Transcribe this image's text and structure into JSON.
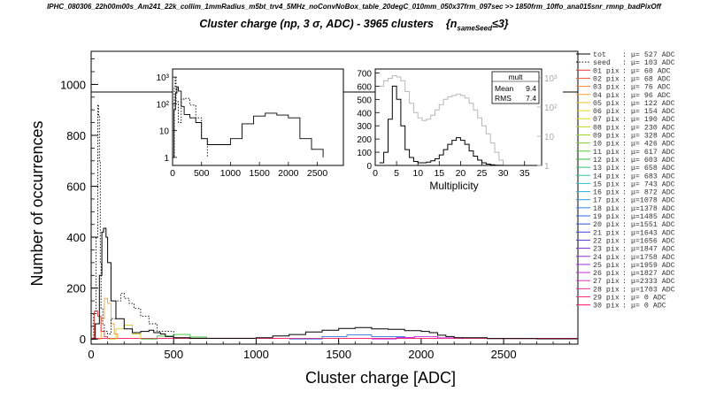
{
  "header": {
    "filename": "IPHC_080306_22h00m00s_Am241_22k_collim_1mmRadius_m5bt_trv4_5MHz_noConvNoBox_table_20degC_010mm_050x37frm_097sec >> 1850frm_10ffo_ana015snr_rmnp_badPixOff",
    "title": "Cluster charge (np, 3 σ, ADC) - 3965 clusters",
    "selection": "{n",
    "selection_sub": "sameSeed",
    "selection_tail": "≤3}"
  },
  "chart_data": [
    {
      "id": "main",
      "type": "line",
      "xlabel": "Cluster charge  [ADC]",
      "ylabel": "Number of occurrences",
      "xlim": [
        0,
        2950
      ],
      "ylim": [
        -20,
        1130
      ],
      "xticks": [
        0,
        500,
        1000,
        1500,
        2000,
        2500
      ],
      "yticks": [
        0,
        200,
        400,
        600,
        800,
        1000
      ],
      "series": [
        {
          "name": "tot",
          "style": "solid",
          "color": "#000000",
          "x": [
            0,
            25,
            50,
            65,
            75,
            90,
            100,
            120,
            150,
            200,
            250,
            300,
            350,
            380,
            420,
            450,
            500,
            600,
            800,
            1000,
            1100,
            1200,
            1300,
            1400,
            1500,
            1600,
            1700,
            1800,
            1900,
            2000,
            2050,
            2100,
            2150,
            2200,
            2400,
            2700,
            2950
          ],
          "y": [
            0,
            60,
            250,
            420,
            435,
            400,
            300,
            150,
            80,
            40,
            25,
            30,
            35,
            25,
            20,
            10,
            5,
            3,
            3,
            5,
            12,
            18,
            28,
            35,
            42,
            45,
            40,
            38,
            33,
            30,
            25,
            15,
            10,
            5,
            2,
            1,
            0
          ]
        },
        {
          "name": "seed",
          "style": "dotted",
          "color": "#000000",
          "x": [
            0,
            15,
            30,
            40,
            45,
            50,
            55,
            60,
            70,
            80,
            100,
            120,
            150,
            180,
            200,
            230,
            260,
            300,
            350,
            400,
            500,
            600
          ],
          "y": [
            0,
            100,
            400,
            920,
            880,
            700,
            300,
            120,
            60,
            30,
            20,
            80,
            150,
            180,
            160,
            140,
            120,
            90,
            60,
            30,
            5,
            0
          ]
        },
        {
          "name": "01 pix",
          "style": "solid",
          "color": "#e8393a",
          "x": [
            0,
            20,
            40,
            60,
            80,
            100
          ],
          "y": [
            0,
            110,
            90,
            30,
            10,
            0
          ]
        },
        {
          "name": "04 pix",
          "style": "solid",
          "color": "#f0a030",
          "x": [
            40,
            60,
            80,
            100,
            120,
            140,
            160
          ],
          "y": [
            0,
            80,
            160,
            140,
            60,
            20,
            0
          ]
        },
        {
          "name": "08 pix",
          "style": "solid",
          "color": "#d0d020",
          "x": [
            100,
            150,
            200,
            250,
            300
          ],
          "y": [
            0,
            40,
            55,
            20,
            0
          ]
        },
        {
          "name": "12 pix",
          "style": "solid",
          "color": "#30c030",
          "x": [
            300,
            400,
            500,
            600,
            700
          ],
          "y": [
            0,
            12,
            18,
            8,
            0
          ]
        },
        {
          "name": "20 pix",
          "style": "solid",
          "color": "#3070e0",
          "x": [
            1200,
            1400,
            1550,
            1700,
            1900
          ],
          "y": [
            0,
            10,
            16,
            10,
            0
          ]
        },
        {
          "name": "25 pix",
          "style": "solid",
          "color": "#c030e0",
          "x": [
            1700,
            1850,
            1960,
            2100,
            2250
          ],
          "y": [
            0,
            6,
            10,
            5,
            0
          ]
        },
        {
          "name": "30 pix",
          "style": "solid",
          "color": "#ff1060",
          "x": [
            0,
            2950
          ],
          "y": [
            3,
            3
          ]
        }
      ]
    },
    {
      "id": "inset-charge-log",
      "type": "line",
      "xlim": [
        0,
        2950
      ],
      "ylim": [
        0.5,
        2000
      ],
      "yscale": "log",
      "xticks": [
        0,
        500,
        1000,
        1500,
        2000,
        2500
      ],
      "yticks": [
        1,
        10,
        100,
        1000
      ],
      "ytick_labels": [
        "1",
        "10",
        "10²",
        "10³"
      ],
      "series": [
        {
          "name": "tot",
          "style": "solid",
          "color": "#000000",
          "x": [
            0,
            25,
            50,
            75,
            100,
            150,
            200,
            300,
            400,
            500,
            600,
            800,
            1000,
            1200,
            1400,
            1600,
            1800,
            2000,
            2200,
            2400,
            2600
          ],
          "y": [
            1,
            60,
            250,
            430,
            300,
            80,
            40,
            30,
            20,
            5,
            3,
            3,
            5,
            18,
            35,
            45,
            38,
            30,
            5,
            2,
            1
          ]
        },
        {
          "name": "seed",
          "style": "dotted",
          "color": "#000000",
          "x": [
            0,
            30,
            45,
            60,
            100,
            150,
            200,
            300,
            400,
            500,
            600
          ],
          "y": [
            1,
            400,
            920,
            120,
            20,
            150,
            160,
            90,
            30,
            5,
            1
          ]
        }
      ]
    },
    {
      "id": "inset-multiplicity",
      "type": "line",
      "xlabel": "Multiplicity",
      "xlim": [
        0,
        39
      ],
      "ylim": [
        0,
        730
      ],
      "xticks": [
        0,
        5,
        10,
        15,
        20,
        25,
        30,
        35
      ],
      "yticks": [
        0,
        100,
        200,
        300,
        400,
        500,
        600,
        700
      ],
      "right_yticks": [
        1,
        10,
        100,
        1000
      ],
      "right_ytick_labels": [
        "1",
        "10",
        "10²",
        "10³"
      ],
      "stats": {
        "title": "mult",
        "mean_label": "Mean",
        "mean": "9.4",
        "rms_label": "RMS",
        "rms": "7.4"
      },
      "series": [
        {
          "name": "mult",
          "style": "solid",
          "color": "#000000",
          "x": [
            1,
            2,
            3,
            4,
            5,
            6,
            7,
            8,
            9,
            10,
            11,
            12,
            13,
            14,
            15,
            16,
            17,
            18,
            19,
            20,
            21,
            22,
            23,
            24,
            25,
            26,
            27,
            28,
            29,
            30
          ],
          "y": [
            20,
            100,
            350,
            600,
            500,
            300,
            120,
            60,
            30,
            20,
            20,
            25,
            35,
            50,
            80,
            120,
            160,
            190,
            210,
            190,
            160,
            110,
            70,
            40,
            20,
            10,
            5,
            2,
            1,
            0
          ]
        },
        {
          "name": "mult-log",
          "style": "solid",
          "color": "#b8b8b8",
          "x": [
            1,
            2,
            3,
            4,
            5,
            6,
            7,
            8,
            9,
            10,
            11,
            12,
            13,
            14,
            15,
            16,
            17,
            18,
            19,
            20,
            21,
            22,
            23,
            24,
            25,
            26,
            27,
            28,
            29,
            30
          ],
          "y": [
            600,
            640,
            660,
            680,
            670,
            640,
            560,
            470,
            400,
            360,
            340,
            350,
            380,
            420,
            460,
            500,
            520,
            530,
            540,
            530,
            510,
            470,
            420,
            360,
            300,
            240,
            170,
            100,
            40,
            0
          ]
        }
      ]
    }
  ],
  "legend": [
    {
      "label": "tot",
      "stat": ": μ=  527 ADC",
      "color": "#000000",
      "style": "solid"
    },
    {
      "label": "seed",
      "stat": ": μ=  103 ADC",
      "color": "#000000",
      "style": "dotted"
    },
    {
      "label": "01 pix",
      "stat": ": μ=   60 ADC",
      "color": "#e8393a",
      "style": "solid"
    },
    {
      "label": "02 pix",
      "stat": ": μ=   68 ADC",
      "color": "#ec5e38",
      "style": "solid"
    },
    {
      "label": "03 pix",
      "stat": ": μ=   76 ADC",
      "color": "#ef8236",
      "style": "solid"
    },
    {
      "label": "04 pix",
      "stat": ": μ=   96 ADC",
      "color": "#f0a030",
      "style": "solid"
    },
    {
      "label": "05 pix",
      "stat": ": μ=  122 ADC",
      "color": "#f0c028",
      "style": "solid"
    },
    {
      "label": "06 pix",
      "stat": ": μ=  154 ADC",
      "color": "#e8d020",
      "style": "solid"
    },
    {
      "label": "07 pix",
      "stat": ": μ=  190 ADC",
      "color": "#d8d820",
      "style": "solid"
    },
    {
      "label": "08 pix",
      "stat": ": μ=  230 ADC",
      "color": "#c0d820",
      "style": "solid"
    },
    {
      "label": "09 pix",
      "stat": ": μ=  328 ADC",
      "color": "#a0d828",
      "style": "solid"
    },
    {
      "label": "10 pix",
      "stat": ": μ=  426 ADC",
      "color": "#80d030",
      "style": "solid"
    },
    {
      "label": "11 pix",
      "stat": ": μ=  617 ADC",
      "color": "#58c838",
      "style": "solid"
    },
    {
      "label": "12 pix",
      "stat": ": μ=  603 ADC",
      "color": "#30c040",
      "style": "solid"
    },
    {
      "label": "13 pix",
      "stat": ": μ=  658 ADC",
      "color": "#30c070",
      "style": "solid"
    },
    {
      "label": "14 pix",
      "stat": ": μ=  683 ADC",
      "color": "#30c0a0",
      "style": "solid"
    },
    {
      "label": "15 pix",
      "stat": ": μ=  743 ADC",
      "color": "#30c0c8",
      "style": "solid"
    },
    {
      "label": "16 pix",
      "stat": ": μ=  872 ADC",
      "color": "#30b0e0",
      "style": "solid"
    },
    {
      "label": "17 pix",
      "stat": ": μ=1078 ADC",
      "color": "#3098e8",
      "style": "solid"
    },
    {
      "label": "18 pix",
      "stat": ": μ=1378 ADC",
      "color": "#3080e8",
      "style": "solid"
    },
    {
      "label": "19 pix",
      "stat": ": μ=1485 ADC",
      "color": "#3068e0",
      "style": "solid"
    },
    {
      "label": "20 pix",
      "stat": ": μ=1551 ADC",
      "color": "#3050d8",
      "style": "solid"
    },
    {
      "label": "21 pix",
      "stat": ": μ=1643 ADC",
      "color": "#4040d8",
      "style": "solid"
    },
    {
      "label": "22 pix",
      "stat": ": μ=1656 ADC",
      "color": "#5838d8",
      "style": "solid"
    },
    {
      "label": "23 pix",
      "stat": ": μ=1847 ADC",
      "color": "#7030d8",
      "style": "solid"
    },
    {
      "label": "24 pix",
      "stat": ": μ=1758 ADC",
      "color": "#8830d8",
      "style": "solid"
    },
    {
      "label": "25 pix",
      "stat": ": μ=1959 ADC",
      "color": "#a030d8",
      "style": "solid"
    },
    {
      "label": "26 pix",
      "stat": ": μ=1827 ADC",
      "color": "#c030d0",
      "style": "solid"
    },
    {
      "label": "27 pix",
      "stat": ": μ=2333 ADC",
      "color": "#d830b8",
      "style": "solid"
    },
    {
      "label": "28 pix",
      "stat": ": μ=1703 ADC",
      "color": "#e83098",
      "style": "solid"
    },
    {
      "label": "29 pix",
      "stat": ": μ=    0 ADC",
      "color": "#f03078",
      "style": "solid"
    },
    {
      "label": "30 pix",
      "stat": ": μ=    0 ADC",
      "color": "#ff1060",
      "style": "solid"
    }
  ]
}
